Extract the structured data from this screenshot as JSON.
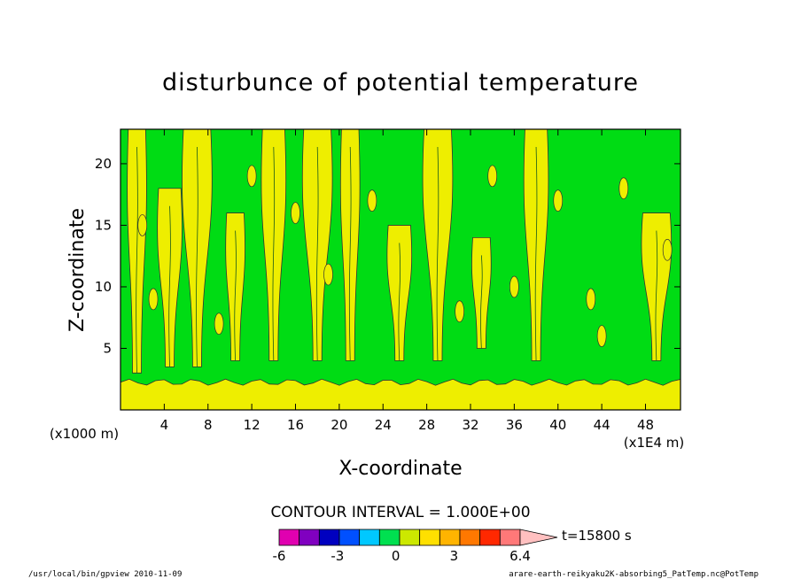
{
  "chart_data": {
    "type": "heatmap",
    "title": "disturbunce of potential temperature",
    "xlabel": "X-coordinate",
    "ylabel": "Z-coordinate",
    "x_unit": "(x1E4 m)",
    "y_unit": "(x1000 m)",
    "xlim": [
      0,
      51.2
    ],
    "ylim": [
      0,
      22.8
    ],
    "x_ticks": [
      4,
      8,
      12,
      16,
      20,
      24,
      28,
      32,
      36,
      40,
      44,
      48
    ],
    "y_ticks": [
      5,
      10,
      15,
      20
    ],
    "contour_interval_label": "CONTOUR INTERVAL = 1.000E+00",
    "time_label": "t=15800 s",
    "colorbar": {
      "colors": [
        "#e000b0",
        "#8000c0",
        "#0000c0",
        "#0050ff",
        "#00c8ff",
        "#00e050",
        "#cce800",
        "#ffe000",
        "#ffb400",
        "#ff7800",
        "#ff2800",
        "#ff7878",
        "#ffc0c0"
      ],
      "tick_labels": [
        "-6",
        "-3",
        "0",
        "3",
        "6.4"
      ],
      "tick_values": [
        -6,
        -3,
        0,
        3,
        6.4
      ],
      "range": [
        -6,
        6.4
      ]
    },
    "fields": {
      "background_level": "0 to 1",
      "surface_layer": {
        "z_range": [
          0,
          2.5
        ],
        "level": "1 to 2"
      },
      "plumes": [
        {
          "x": 1.5,
          "base": 3,
          "top": 22.8
        },
        {
          "x": 4.5,
          "base": 3.5,
          "top": 18
        },
        {
          "x": 7,
          "base": 3.5,
          "top": 22.8
        },
        {
          "x": 10.5,
          "base": 4,
          "top": 16
        },
        {
          "x": 14,
          "base": 4,
          "top": 22.8
        },
        {
          "x": 18,
          "base": 4,
          "top": 22.8
        },
        {
          "x": 21,
          "base": 4,
          "top": 22.8
        },
        {
          "x": 25.5,
          "base": 4,
          "top": 15
        },
        {
          "x": 29,
          "base": 4,
          "top": 22.8
        },
        {
          "x": 33,
          "base": 5,
          "top": 14
        },
        {
          "x": 38,
          "base": 4,
          "top": 22.8
        },
        {
          "x": 49,
          "base": 4,
          "top": 16
        }
      ]
    }
  },
  "footer": {
    "left": "/usr/local/bin/gpview  2010-11-09",
    "right": "arare-earth-reikyaku2K-absorbing5_PatTemp.nc@PotTemp"
  }
}
